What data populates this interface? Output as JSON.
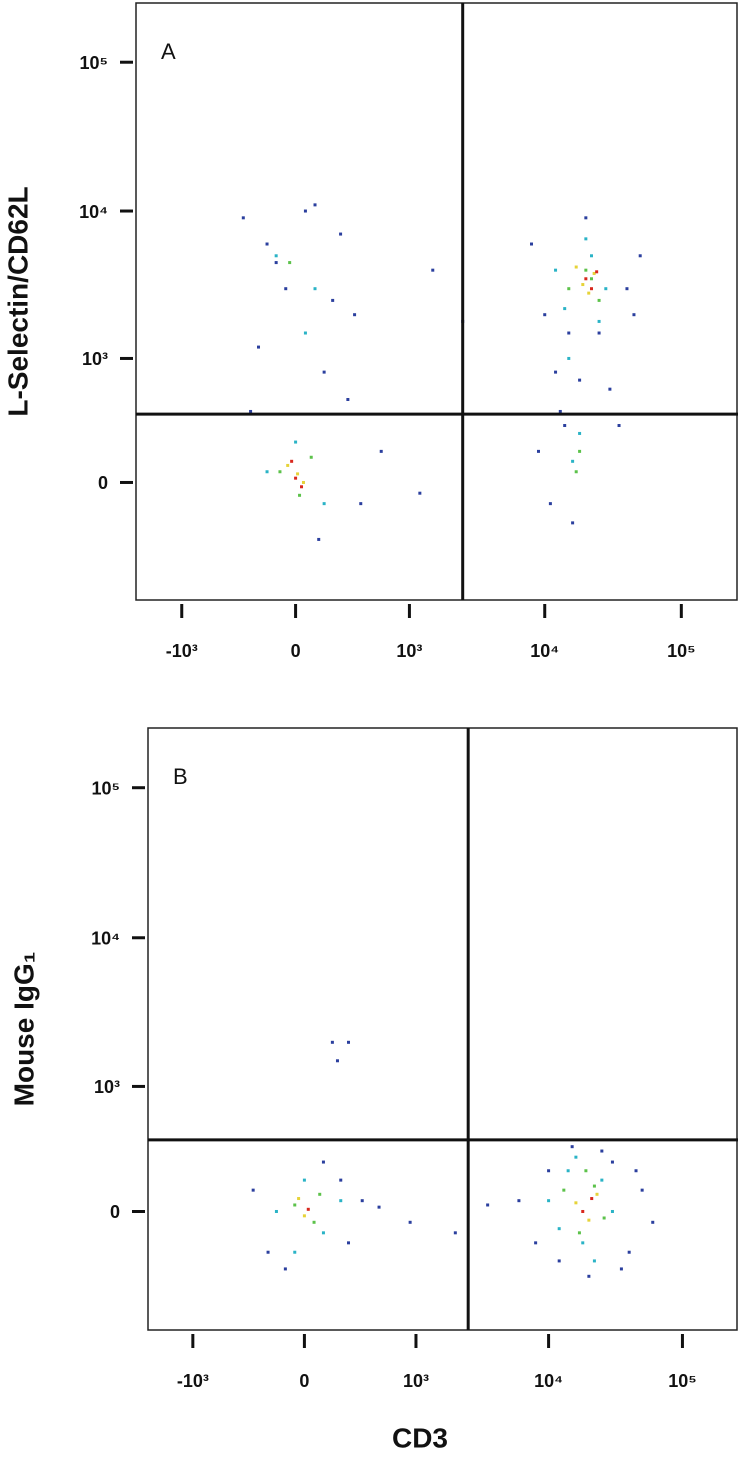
{
  "chart_data": [
    {
      "type": "scatter",
      "panel_label": "A",
      "y_label": "L-Selectin/CD62L",
      "xlim": [
        -2200,
        260000
      ],
      "ylim": [
        -900,
        250000
      ],
      "xticks": [
        {
          "value": -1000,
          "label": "-10³"
        },
        0,
        {
          "value": 1000,
          "label": "10³"
        },
        {
          "value": 10000,
          "label": "10⁴"
        },
        {
          "value": 100000,
          "label": "10⁵"
        }
      ],
      "yticks": [
        0,
        {
          "value": 1000,
          "label": "10³"
        },
        {
          "value": 10000,
          "label": "10⁴"
        },
        {
          "value": 100000,
          "label": "10⁵"
        }
      ],
      "gates": {
        "x": 2500,
        "y": 380
      },
      "series": [
        {
          "color": "#2b3f9e",
          "x": [
            -300,
            -150,
            -50,
            100,
            250,
            350,
            -200,
            150,
            300,
            -100,
            50,
            200,
            -250,
            120,
            400,
            8000,
            10000,
            12000,
            14000,
            16000,
            20000,
            25000,
            30000,
            40000,
            50000,
            9000,
            11000,
            13000,
            15000,
            18000,
            35000,
            45000,
            600,
            1500,
            2500,
            1200
          ],
          "values": [
            9000,
            6000,
            3000,
            11000,
            7000,
            2000,
            1200,
            800,
            500,
            4500,
            10000,
            2500,
            400,
            -300,
            -100,
            6000,
            2000,
            800,
            300,
            -200,
            9000,
            1500,
            600,
            3000,
            5000,
            150,
            -100,
            400,
            1500,
            700,
            300,
            2000,
            150,
            4000,
            1800,
            -50
          ]
        },
        {
          "color": "#2ab3c6",
          "x": [
            -100,
            100,
            0,
            150,
            -150,
            50,
            12000,
            15000,
            18000,
            22000,
            28000,
            16000,
            14000,
            20000,
            25000
          ],
          "values": [
            5000,
            3000,
            200,
            -100,
            50,
            1500,
            4000,
            1000,
            250,
            5000,
            3000,
            100,
            2200,
            6500,
            1800
          ]
        },
        {
          "color": "#5cc24a",
          "x": [
            -80,
            80,
            20,
            -30,
            15000,
            20000,
            25000,
            18000,
            22000,
            17000
          ],
          "values": [
            50,
            120,
            -60,
            4500,
            3000,
            4000,
            2500,
            150,
            3500,
            50
          ]
        },
        {
          "color": "#e6d338",
          "x": [
            -40,
            40,
            10,
            19000,
            23000,
            21000,
            17000
          ],
          "values": [
            80,
            0,
            40,
            3200,
            3800,
            2800,
            4200
          ]
        },
        {
          "color": "#d8281e",
          "x": [
            0,
            30,
            -20,
            20000,
            22000,
            24000
          ],
          "values": [
            20,
            -20,
            100,
            3500,
            3000,
            3900
          ]
        }
      ]
    },
    {
      "type": "scatter",
      "panel_label": "B",
      "y_label": "Mouse IgG₁",
      "x_label": "CD3",
      "xlim": [
        -2200,
        260000
      ],
      "ylim": [
        -900,
        250000
      ],
      "xticks": [
        {
          "value": -1000,
          "label": "-10³"
        },
        0,
        {
          "value": 1000,
          "label": "10³"
        },
        {
          "value": 10000,
          "label": "10⁴"
        },
        {
          "value": 100000,
          "label": "10⁵"
        }
      ],
      "yticks": [
        0,
        {
          "value": 1000,
          "label": "10³"
        },
        {
          "value": 10000,
          "label": "10⁴"
        },
        {
          "value": 100000,
          "label": "10⁵"
        }
      ],
      "gates": {
        "x": 2500,
        "y": 400
      },
      "series": [
        {
          "color": "#2b3f9e",
          "x": [
            -300,
            -200,
            100,
            250,
            350,
            -100,
            200,
            500,
            900,
            2000,
            3500,
            6000,
            8000,
            10000,
            12000,
            30000,
            40000,
            50000,
            60000,
            15000,
            20000,
            25000,
            45000,
            35000,
            150,
            250,
            180
          ],
          "values": [
            100,
            -200,
            250,
            -150,
            50,
            -300,
            150,
            20,
            -50,
            -100,
            30,
            50,
            -150,
            200,
            -250,
            250,
            -200,
            100,
            -50,
            350,
            -350,
            320,
            200,
            -300,
            2000,
            2000,
            1500
          ]
        },
        {
          "color": "#2ab3c6",
          "x": [
            -150,
            100,
            0,
            200,
            -50,
            10000,
            14000,
            18000,
            25000,
            30000,
            22000,
            16000,
            12000
          ],
          "values": [
            0,
            -100,
            150,
            50,
            -200,
            50,
            200,
            -150,
            150,
            0,
            -250,
            280,
            -80
          ]
        },
        {
          "color": "#5cc24a",
          "x": [
            -50,
            50,
            80,
            13000,
            17000,
            22000,
            26000,
            19000
          ],
          "values": [
            30,
            -50,
            80,
            100,
            -100,
            120,
            -30,
            200
          ]
        },
        {
          "color": "#e6d338",
          "x": [
            0,
            -30,
            16000,
            20000,
            23000
          ],
          "values": [
            -20,
            60,
            40,
            -40,
            80
          ]
        },
        {
          "color": "#d8281e",
          "x": [
            20,
            18000,
            21000
          ],
          "values": [
            10,
            0,
            60
          ]
        }
      ]
    }
  ]
}
